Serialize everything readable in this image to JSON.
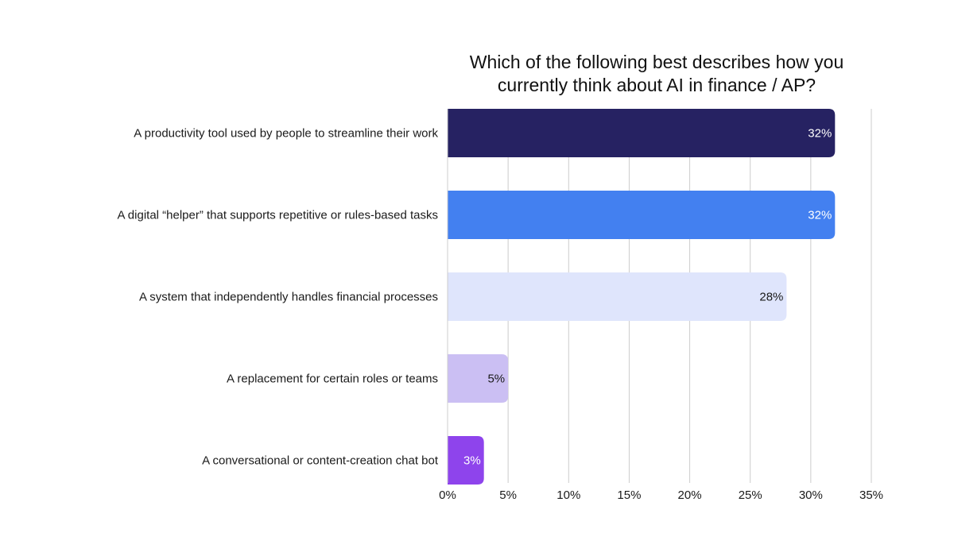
{
  "chart_data": {
    "type": "bar",
    "orientation": "horizontal",
    "title_lines": [
      "Which of the following best describes how you",
      "currently think about AI in finance / AP?"
    ],
    "categories": [
      "A productivity tool used by people to streamline their work",
      "A digital “helper” that supports repetitive or rules-based tasks",
      "A system that independently handles financial processes",
      "A replacement for certain roles or teams",
      "A conversational or content-creation chat bot"
    ],
    "values": [
      32,
      32,
      28,
      5,
      3
    ],
    "value_labels": [
      "32%",
      "32%",
      "28%",
      "5%",
      "3%"
    ],
    "bar_colors": [
      "#262262",
      "#4380F0",
      "#DFE5FC",
      "#CBBFF3",
      "#8E44EC"
    ],
    "label_colors": [
      "#ffffff",
      "#ffffff",
      "#1a1a1a",
      "#1a1a1a",
      "#ffffff"
    ],
    "xlim": [
      0,
      35
    ],
    "x_ticks": [
      0,
      5,
      10,
      15,
      20,
      25,
      30,
      35
    ],
    "x_tick_labels": [
      "0%",
      "5%",
      "10%",
      "15%",
      "20%",
      "25%",
      "30%",
      "35%"
    ],
    "grid": true,
    "gridline_color": "#cccccc"
  }
}
